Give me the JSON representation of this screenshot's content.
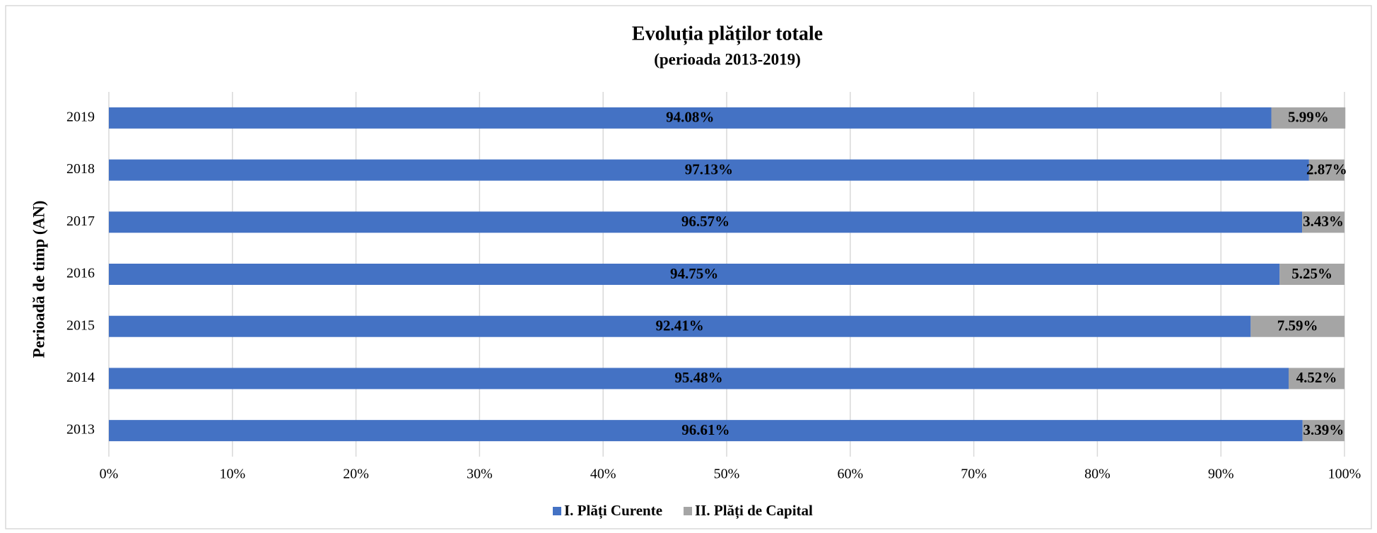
{
  "chart_data": {
    "type": "stacked_bar_horizontal",
    "title": "Evoluția plăților totale",
    "subtitle": "(perioada 2013-2019)",
    "y_axis_label": "Perioadă de timp (AN)",
    "categories": [
      "2013",
      "2014",
      "2015",
      "2016",
      "2017",
      "2018",
      "2019"
    ],
    "series": [
      {
        "name": "I. Plăți Curente",
        "color": "#4472c4",
        "values": [
          96.61,
          95.48,
          92.41,
          94.75,
          96.57,
          97.13,
          94.08
        ],
        "value_labels": [
          "96.61%",
          "95.48%",
          "92.41%",
          "94.75%",
          "96.57%",
          "97.13%",
          "94.08%"
        ]
      },
      {
        "name": "II. Plăți de Capital",
        "color": "#a5a5a5",
        "values": [
          3.39,
          4.52,
          7.59,
          5.25,
          3.43,
          2.87,
          5.99
        ],
        "value_labels": [
          "3.39%",
          "4.52%",
          "7.59%",
          "5.25%",
          "3.43%",
          "2.87%",
          "5.99%"
        ]
      }
    ],
    "xlim": [
      0,
      100
    ],
    "xticks": [
      {
        "value": 0,
        "label": "0%"
      },
      {
        "value": 10,
        "label": "10%"
      },
      {
        "value": 20,
        "label": "20%"
      },
      {
        "value": 30,
        "label": "30%"
      },
      {
        "value": 40,
        "label": "40%"
      },
      {
        "value": 50,
        "label": "50%"
      },
      {
        "value": 60,
        "label": "60%"
      },
      {
        "value": 70,
        "label": "70%"
      },
      {
        "value": 80,
        "label": "80%"
      },
      {
        "value": 90,
        "label": "90%"
      },
      {
        "value": 100,
        "label": "100%"
      }
    ],
    "grid": true,
    "legend": "bottom"
  }
}
